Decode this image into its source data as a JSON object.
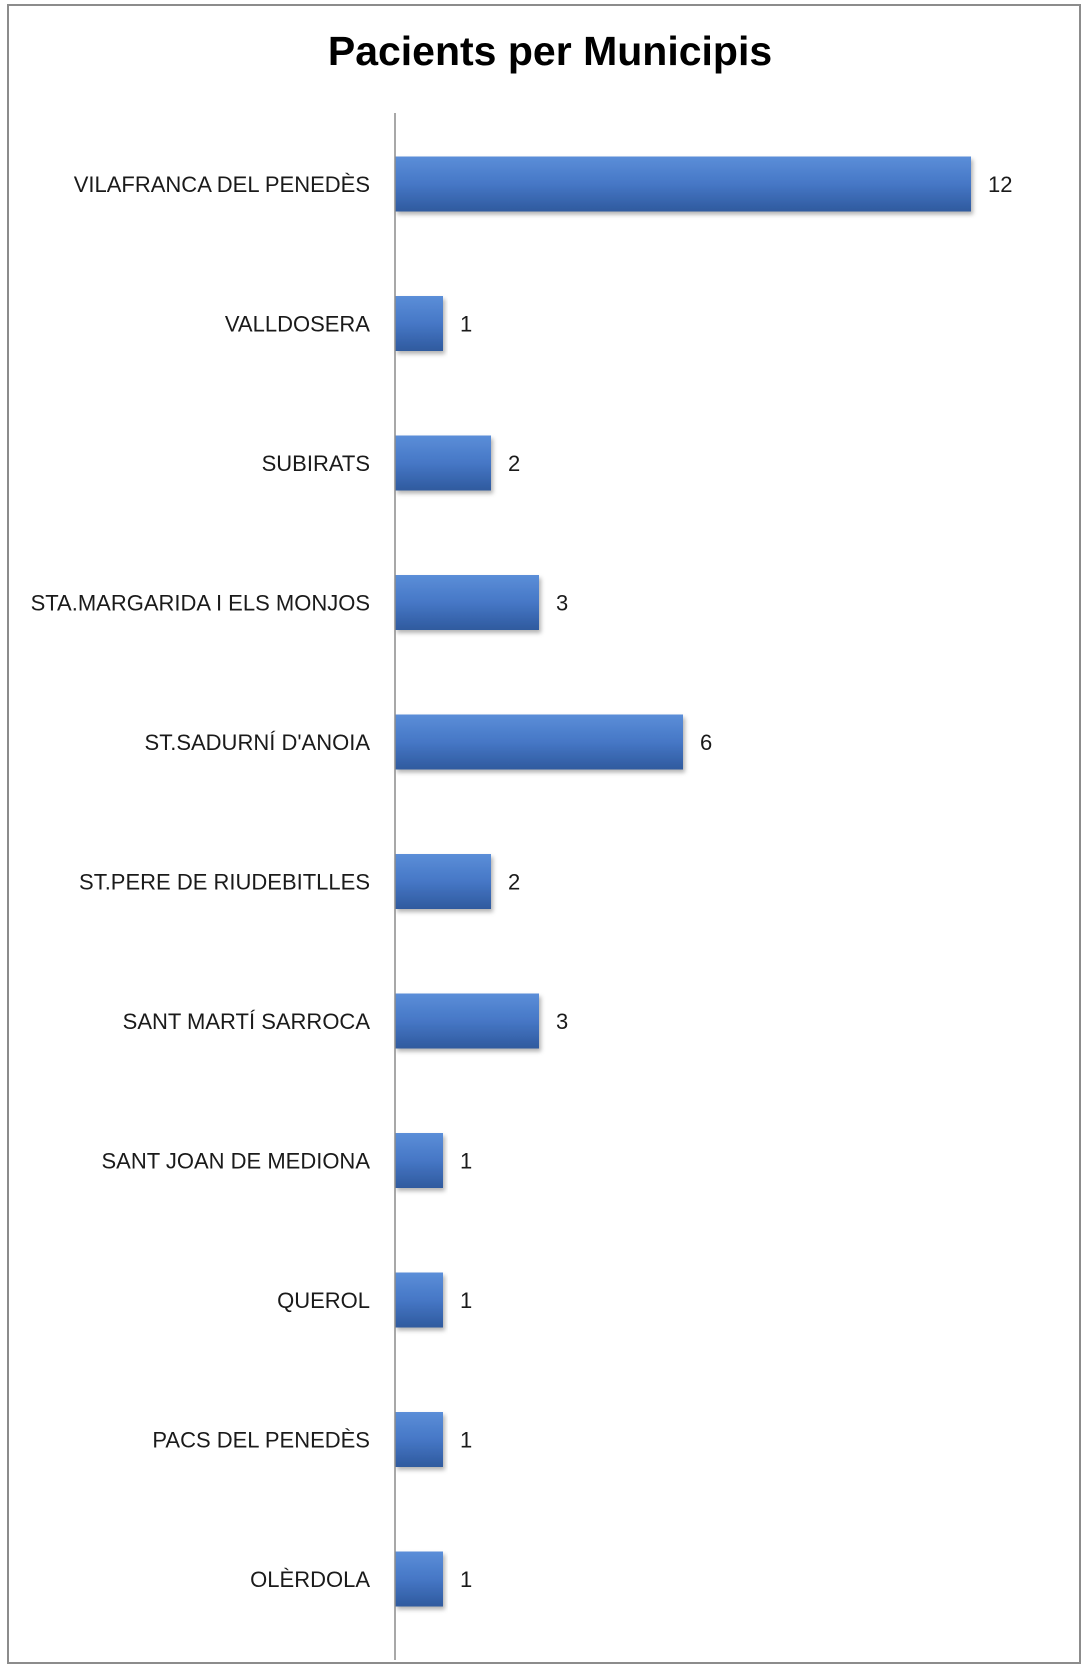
{
  "chart_data": {
    "type": "bar",
    "orientation": "horizontal",
    "title": "Pacients per Municipis",
    "xlabel": "",
    "ylabel": "",
    "categories": [
      "VILAFRANCA DEL PENEDÈS",
      "VALLDOSERA",
      "SUBIRATS",
      "STA.MARGARIDA I ELS MONJOS",
      "ST.SADURNÍ D'ANOIA",
      "ST.PERE DE RIUDEBITLLES",
      "SANT MARTÍ SARROCA",
      "SANT JOAN DE MEDIONA",
      "QUEROL",
      "PACS DEL PENEDÈS",
      "OLÈRDOLA"
    ],
    "values": [
      12,
      1,
      2,
      3,
      6,
      2,
      3,
      1,
      1,
      1,
      1
    ],
    "xlim": [
      0,
      13
    ],
    "data_labels": true,
    "grid": false,
    "legend": "none",
    "bar_color": "#4472c4"
  }
}
